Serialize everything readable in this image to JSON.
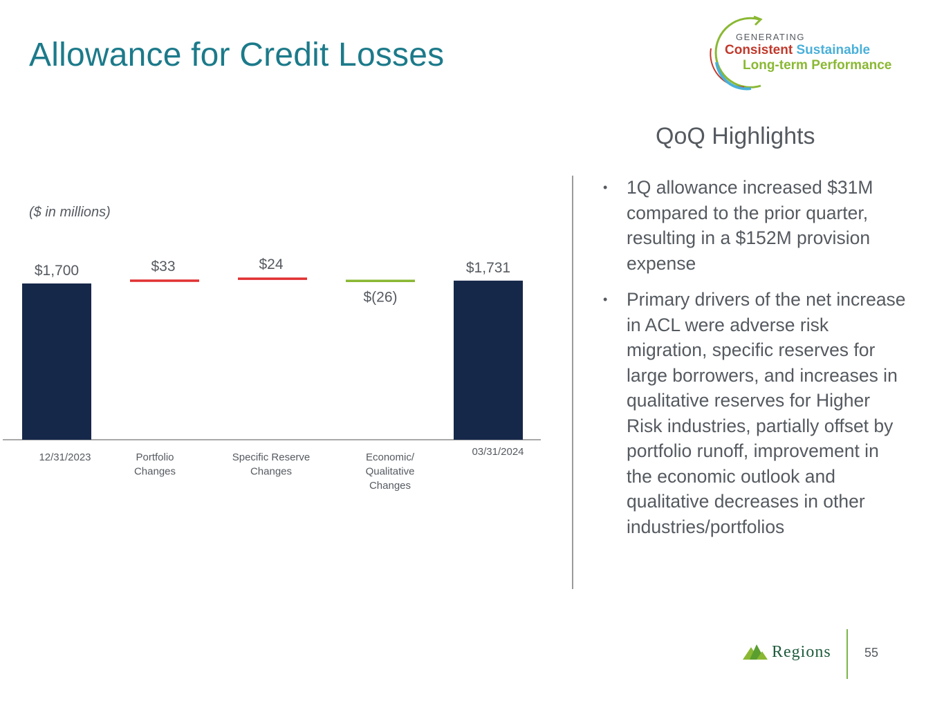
{
  "title": "Allowance for Credit Losses",
  "badge": {
    "generating": "GENERATING",
    "consistent": "Consistent",
    "sustainable": "Sustainable",
    "longterm": "Long-term Performance"
  },
  "units_note": "($ in millions)",
  "highlights": {
    "title": "QoQ Highlights",
    "bullets": [
      "1Q allowance increased $31M compared to the prior quarter, resulting in a $152M provision expense",
      "Primary drivers of the net increase in ACL were adverse risk migration, specific reserves for large borrowers, and increases in qualitative reserves for Higher Risk industries, partially offset by portfolio runoff, improvement in the economic outlook and qualitative decreases in other industries/portfolios"
    ]
  },
  "footer": {
    "brand": "Regions",
    "page_number": "55"
  },
  "colors": {
    "title": "#1c7a8a",
    "total_bar": "#16284a",
    "increase": "#e03131",
    "decrease": "#8ab833",
    "text": "#555a60"
  },
  "chart_data": {
    "type": "bar",
    "subtype": "waterfall",
    "categories": [
      "12/31/2023",
      "Portfolio Changes",
      "Specific Reserve Changes",
      "Economic/ Qualitative Changes",
      "03/31/2024"
    ],
    "values": [
      1700,
      33,
      24,
      -26,
      1731
    ],
    "kinds": [
      "total",
      "increase",
      "increase",
      "decrease",
      "total"
    ],
    "data_labels": [
      "$1,700",
      "$33",
      "$24",
      "$(26)",
      "$1,731"
    ],
    "title": "",
    "xlabel": "",
    "ylabel": "",
    "ylim": [
      0,
      1800
    ],
    "grid": false,
    "legend": "none"
  }
}
